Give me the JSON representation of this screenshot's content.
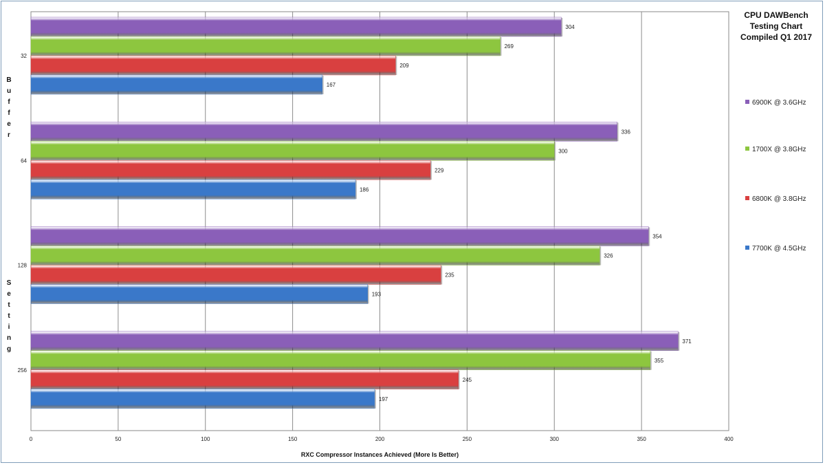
{
  "chart_data": {
    "type": "bar",
    "orientation": "horizontal",
    "title_lines": [
      "CPU DAWBench",
      "Testing Chart",
      "Compiled Q1 2017"
    ],
    "xlabel": "RXC Compressor Instances Achieved (More Is Better)",
    "ylabel": "Buffer Setting",
    "ylabel_words": [
      "Buffer",
      "Setting"
    ],
    "xlim": [
      0,
      400
    ],
    "xticks": [
      0,
      50,
      100,
      150,
      200,
      250,
      300,
      350,
      400
    ],
    "grid": true,
    "legend_position": "right",
    "categories": [
      "32",
      "64",
      "128",
      "256"
    ],
    "series": [
      {
        "name": "6900K @ 3.6GHz",
        "color": "#8a5fb8",
        "values": [
          304,
          336,
          354,
          371
        ]
      },
      {
        "name": "1700X @ 3.8GHz",
        "color": "#8dc63f",
        "values": [
          269,
          300,
          326,
          355
        ]
      },
      {
        "name": "6800K @ 3.8GHz",
        "color": "#d94040",
        "values": [
          209,
          229,
          235,
          245
        ]
      },
      {
        "name": "7700K @ 4.5GHz",
        "color": "#3a78c9",
        "values": [
          167,
          186,
          193,
          197
        ]
      }
    ]
  }
}
